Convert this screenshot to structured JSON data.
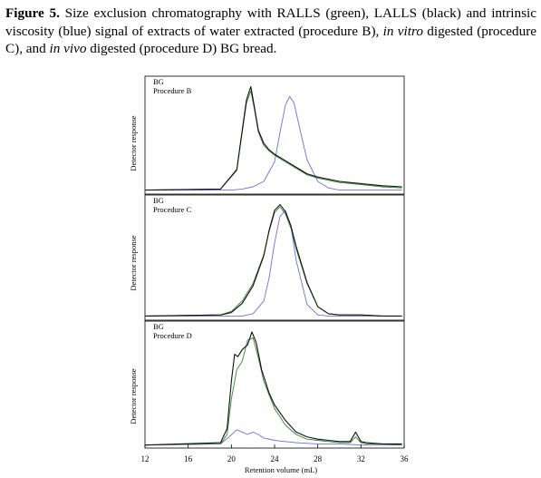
{
  "caption": {
    "label": "Figure 5.",
    "parts": [
      {
        "text": " Size exclusion chromatography with RALLS (green), LALLS (black) and intrinsic viscosity (blue) signal of extracts of water extracted (procedure B), ",
        "italic": false
      },
      {
        "text": "in vitro",
        "italic": true
      },
      {
        "text": " digested (procedure C), and ",
        "italic": false
      },
      {
        "text": "in vivo",
        "italic": true
      },
      {
        "text": " digested (procedure D) BG bread.",
        "italic": false
      }
    ]
  },
  "colors": {
    "RALLS": "#2e8b2e",
    "LALLS": "#111111",
    "viscosity": "#6e6ee6"
  },
  "chart_data": [
    {
      "type": "line",
      "panel_label": [
        "BG",
        "Procedure B"
      ],
      "ylabel": "Detector response",
      "xlim": [
        12,
        36
      ],
      "series": [
        {
          "name": "RALLS",
          "x": [
            12,
            19,
            20.5,
            21,
            21.4,
            21.8,
            22.1,
            22.5,
            23,
            23.5,
            24,
            25,
            26,
            27,
            28,
            30,
            32,
            34,
            35.8
          ],
          "y": [
            0.02,
            0.03,
            0.2,
            0.55,
            0.82,
            0.93,
            0.78,
            0.55,
            0.43,
            0.38,
            0.34,
            0.28,
            0.22,
            0.16,
            0.13,
            0.09,
            0.07,
            0.05,
            0.04
          ]
        },
        {
          "name": "LALLS",
          "x": [
            12,
            19,
            20.5,
            21,
            21.4,
            21.8,
            22.1,
            22.5,
            23,
            23.5,
            24,
            25,
            26,
            27,
            28,
            30,
            32,
            34,
            35.8
          ],
          "y": [
            0.02,
            0.03,
            0.21,
            0.57,
            0.85,
            0.97,
            0.8,
            0.57,
            0.45,
            0.39,
            0.35,
            0.29,
            0.23,
            0.17,
            0.14,
            0.1,
            0.08,
            0.06,
            0.05
          ]
        },
        {
          "name": "intrinsic viscosity",
          "x": [
            12,
            20,
            21,
            22,
            23,
            24,
            24.5,
            25,
            25.4,
            25.8,
            26.3,
            27,
            28,
            29,
            30,
            32,
            35.8
          ],
          "y": [
            0.02,
            0.02,
            0.03,
            0.05,
            0.1,
            0.28,
            0.55,
            0.8,
            0.88,
            0.82,
            0.6,
            0.3,
            0.1,
            0.04,
            0.02,
            0.02,
            0.02
          ]
        }
      ]
    },
    {
      "type": "line",
      "panel_label": [
        "BG",
        "Procedure C"
      ],
      "ylabel": "Detector response",
      "xlim": [
        12,
        36
      ],
      "series": [
        {
          "name": "RALLS",
          "x": [
            12,
            19,
            20,
            21,
            22,
            23,
            23.5,
            24,
            24.5,
            25,
            25.5,
            26,
            27,
            28,
            29,
            30,
            32,
            34,
            35.8
          ],
          "y": [
            0.02,
            0.03,
            0.06,
            0.15,
            0.3,
            0.55,
            0.75,
            0.91,
            0.96,
            0.9,
            0.78,
            0.6,
            0.3,
            0.1,
            0.04,
            0.03,
            0.03,
            0.02,
            0.02
          ]
        },
        {
          "name": "LALLS",
          "x": [
            12,
            19,
            20,
            21,
            22,
            23,
            23.5,
            24,
            24.5,
            25,
            25.5,
            26,
            27,
            28,
            29,
            30,
            32,
            34,
            35.8
          ],
          "y": [
            0.02,
            0.03,
            0.05,
            0.13,
            0.28,
            0.54,
            0.76,
            0.93,
            0.98,
            0.92,
            0.8,
            0.62,
            0.31,
            0.1,
            0.04,
            0.03,
            0.03,
            0.02,
            0.02
          ]
        },
        {
          "name": "intrinsic viscosity",
          "x": [
            12,
            21,
            22,
            23,
            23.5,
            24,
            24.5,
            25,
            25.5,
            26,
            27,
            28,
            29,
            30,
            35.8
          ],
          "y": [
            0.02,
            0.02,
            0.04,
            0.15,
            0.35,
            0.65,
            0.88,
            0.93,
            0.8,
            0.5,
            0.12,
            0.03,
            0.02,
            0.02,
            0.02
          ]
        }
      ]
    },
    {
      "type": "line",
      "panel_label": [
        "BG",
        "Procedure D"
      ],
      "ylabel": "Detector response",
      "xlabel": "Retention volume (mL)",
      "xlim": [
        12,
        36
      ],
      "xticks": [
        12,
        16,
        20,
        24,
        28,
        32,
        36
      ],
      "series": [
        {
          "name": "RALLS",
          "x": [
            12,
            19,
            19.6,
            20,
            20.5,
            21,
            21.5,
            22,
            22.5,
            23,
            24,
            25,
            26,
            27,
            28,
            29,
            30,
            31,
            31.5,
            32,
            32.5,
            34,
            35.8
          ],
          "y": [
            0.01,
            0.02,
            0.1,
            0.4,
            0.65,
            0.72,
            0.9,
            0.92,
            0.75,
            0.55,
            0.32,
            0.18,
            0.1,
            0.06,
            0.05,
            0.04,
            0.03,
            0.03,
            0.08,
            0.03,
            0.02,
            0.02,
            0.01
          ]
        },
        {
          "name": "LALLS",
          "x": [
            12,
            19,
            19.6,
            20,
            20.3,
            20.6,
            21,
            21.5,
            21.9,
            22.3,
            22.8,
            23.5,
            24,
            25,
            26,
            27,
            28,
            29,
            30,
            31,
            31.5,
            32,
            32.5,
            34,
            35.8
          ],
          "y": [
            0.01,
            0.03,
            0.15,
            0.55,
            0.78,
            0.76,
            0.82,
            0.86,
            0.97,
            0.88,
            0.65,
            0.45,
            0.35,
            0.22,
            0.12,
            0.08,
            0.06,
            0.05,
            0.04,
            0.04,
            0.12,
            0.04,
            0.03,
            0.02,
            0.02
          ]
        },
        {
          "name": "intrinsic viscosity",
          "x": [
            12,
            19,
            19.8,
            20.5,
            21,
            21.5,
            22,
            22.5,
            23,
            24,
            25,
            26,
            28,
            30,
            32,
            35.8
          ],
          "y": [
            0.01,
            0.02,
            0.08,
            0.14,
            0.12,
            0.1,
            0.12,
            0.1,
            0.07,
            0.05,
            0.04,
            0.03,
            0.02,
            0.02,
            0.01,
            0.01
          ]
        }
      ]
    }
  ]
}
